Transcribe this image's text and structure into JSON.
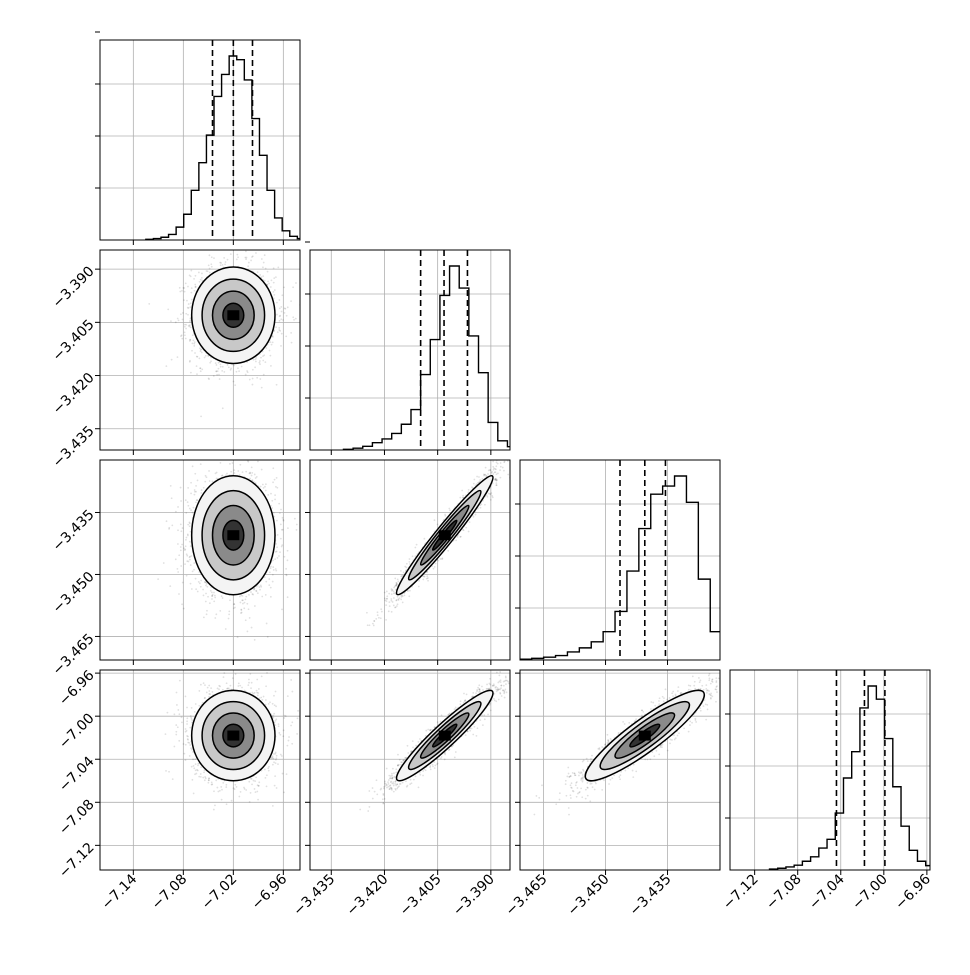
{
  "chart_data": {
    "type": "corner",
    "description_params": 4,
    "grid": true,
    "colors": {
      "line": "#000000",
      "grid": "#b0b0b0",
      "scatter": "#000000"
    },
    "params": [
      {
        "mean": -7.02,
        "sd": 0.025,
        "quantiles": [
          -7.045,
          -7.02,
          -6.997
        ],
        "range": [
          -7.18,
          -6.94
        ],
        "ticks": [
          -7.14,
          -7.08,
          -7.02,
          -6.96
        ],
        "tick_labels": [
          "−7.14",
          "−7.08",
          "−7.02",
          "−6.96"
        ],
        "hist_ticks": 4,
        "hist": [
          0.004,
          0.008,
          0.015,
          0.03,
          0.07,
          0.14,
          0.27,
          0.42,
          0.57,
          0.78,
          0.9,
          1.0,
          0.98,
          0.87,
          0.66,
          0.46,
          0.27,
          0.12,
          0.05,
          0.02,
          0.008,
          0.003
        ]
      },
      {
        "mean": -3.403,
        "sd": 0.0068,
        "quantiles": [
          -3.4098,
          -3.4032,
          -3.3966
        ],
        "range": [
          -3.441,
          -3.3846
        ],
        "ticks": [
          -3.435,
          -3.42,
          -3.405,
          -3.39
        ],
        "tick_labels": [
          "−3.435",
          "−3.420",
          "−3.405",
          "−3.390"
        ],
        "hist_ticks": 4,
        "hist": [
          0.004,
          0.01,
          0.02,
          0.04,
          0.06,
          0.09,
          0.14,
          0.22,
          0.41,
          0.6,
          0.84,
          1.0,
          0.88,
          0.62,
          0.42,
          0.15,
          0.05,
          0.018,
          0.008,
          0.004
        ]
      },
      {
        "mean": -3.4405,
        "sd": 0.0072,
        "quantiles": [
          -3.4465,
          -3.4405,
          -3.4355
        ],
        "range": [
          -3.4707,
          -3.4223
        ],
        "ticks": [
          -3.465,
          -3.45,
          -3.435
        ],
        "tick_labels": [
          "−3.465",
          "−3.450",
          "−3.435"
        ],
        "hist_ticks": 3,
        "hist": [
          0.004,
          0.008,
          0.014,
          0.022,
          0.04,
          0.06,
          0.09,
          0.14,
          0.24,
          0.44,
          0.65,
          0.82,
          0.86,
          0.91,
          0.78,
          0.4,
          0.14,
          0.04,
          0.015,
          0.006
        ]
      },
      {
        "mean": -7.018,
        "sd": 0.021,
        "quantiles": [
          -7.044,
          -7.018,
          -6.999
        ],
        "range": [
          -7.1429,
          -6.9571
        ],
        "ticks": [
          -7.12,
          -7.08,
          -7.04,
          -7.0,
          -6.96
        ],
        "tick_labels": [
          "−7.12",
          "−7.08",
          "−7.04",
          "−7.00",
          "−6.96"
        ],
        "hist_ticks": 3,
        "hist": [
          0.004,
          0.008,
          0.014,
          0.022,
          0.04,
          0.06,
          0.1,
          0.14,
          0.26,
          0.42,
          0.54,
          0.74,
          0.84,
          0.78,
          0.6,
          0.38,
          0.2,
          0.09,
          0.04,
          0.02,
          0.008,
          0.004
        ]
      }
    ],
    "correlations": [
      [
        1.0,
        0.0,
        0.0,
        0.0
      ],
      [
        0.0,
        1.0,
        0.97,
        0.94
      ],
      [
        0.0,
        0.97,
        1.0,
        0.9
      ],
      [
        0.0,
        0.94,
        0.9,
        1.0
      ]
    ],
    "contour_levels_sigma": [
      0.5,
      1.0,
      1.5,
      2.0
    ]
  }
}
